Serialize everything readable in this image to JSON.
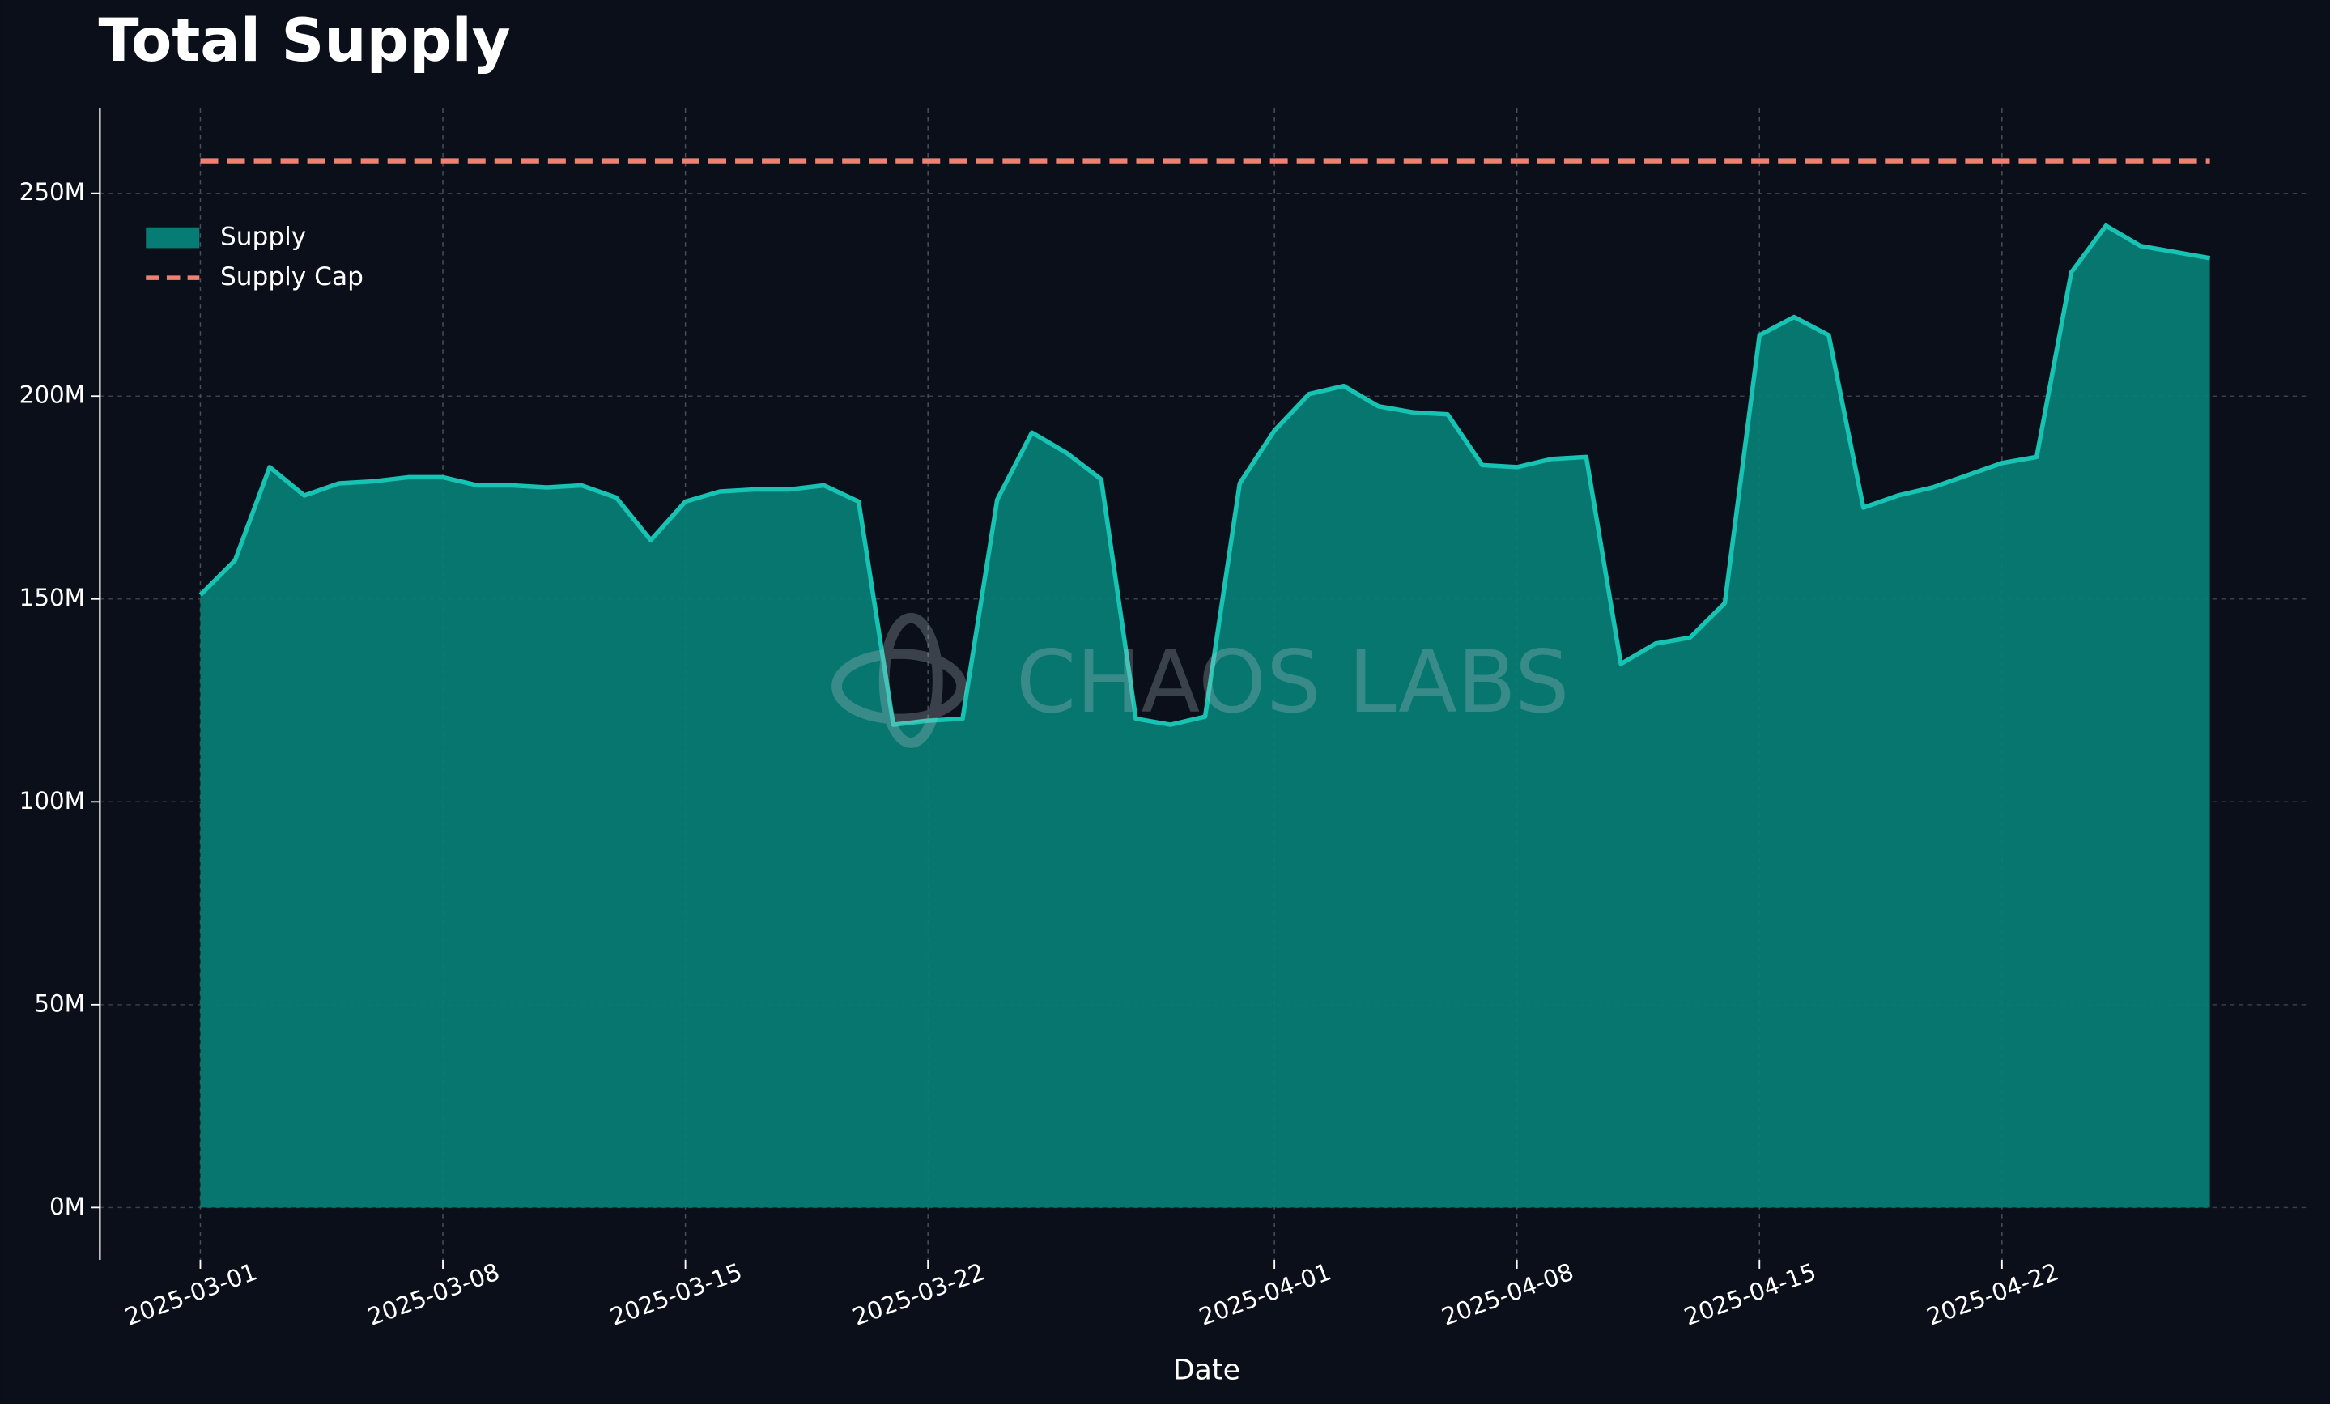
{
  "chart_data": {
    "type": "area",
    "title": "Total Supply",
    "x_label": "Date",
    "x": [
      "2025-03-01",
      "2025-03-02",
      "2025-03-03",
      "2025-03-04",
      "2025-03-05",
      "2025-03-06",
      "2025-03-07",
      "2025-03-08",
      "2025-03-09",
      "2025-03-10",
      "2025-03-11",
      "2025-03-12",
      "2025-03-13",
      "2025-03-14",
      "2025-03-15",
      "2025-03-16",
      "2025-03-17",
      "2025-03-18",
      "2025-03-19",
      "2025-03-20",
      "2025-03-21",
      "2025-03-22",
      "2025-03-23",
      "2025-03-24",
      "2025-03-25",
      "2025-03-26",
      "2025-03-27",
      "2025-03-28",
      "2025-03-29",
      "2025-03-30",
      "2025-03-31",
      "2025-04-01",
      "2025-04-02",
      "2025-04-03",
      "2025-04-04",
      "2025-04-05",
      "2025-04-06",
      "2025-04-07",
      "2025-04-08",
      "2025-04-09",
      "2025-04-10",
      "2025-04-11",
      "2025-04-12",
      "2025-04-13",
      "2025-04-14",
      "2025-04-15",
      "2025-04-16",
      "2025-04-17",
      "2025-04-18",
      "2025-04-19",
      "2025-04-20",
      "2025-04-21",
      "2025-04-22",
      "2025-04-23",
      "2025-04-24",
      "2025-04-25",
      "2025-04-26",
      "2025-04-27",
      "2025-04-28"
    ],
    "series": [
      {
        "name": "Supply",
        "color": "#067c74",
        "line_color": "#17c3b2",
        "values": [
          151,
          159.5,
          182.5,
          175.5,
          178.5,
          179,
          180,
          180,
          178,
          178,
          177.5,
          178,
          175,
          164.5,
          174,
          176.5,
          177,
          177,
          178,
          174,
          119,
          120,
          120.5,
          174.5,
          191,
          186,
          179.5,
          120.5,
          119,
          121,
          178.5,
          191.5,
          200.5,
          202.5,
          197.5,
          196,
          195.5,
          183,
          182.5,
          184.5,
          185,
          134,
          139,
          140.5,
          149,
          215,
          219.5,
          215,
          172.5,
          175.5,
          177.5,
          180.5,
          183.5,
          185,
          230.5,
          242,
          237,
          235.5,
          234
        ]
      }
    ],
    "supply_cap": {
      "name": "Supply Cap",
      "value": 258,
      "color": "#f08070"
    },
    "ylim": [
      -12.9,
      270.9
    ],
    "yticks": [
      {
        "value": 0,
        "label": "0M"
      },
      {
        "value": 50,
        "label": "50M"
      },
      {
        "value": 100,
        "label": "100M"
      },
      {
        "value": 150,
        "label": "150M"
      },
      {
        "value": 200,
        "label": "200M"
      },
      {
        "value": 250,
        "label": "250M"
      }
    ],
    "xticks": [
      "2025-03-01",
      "2025-03-08",
      "2025-03-15",
      "2025-03-22",
      "2025-04-01",
      "2025-04-08",
      "2025-04-15",
      "2025-04-22"
    ],
    "grid": true,
    "legend": "upper left",
    "watermark": "CHAOS LABS"
  }
}
